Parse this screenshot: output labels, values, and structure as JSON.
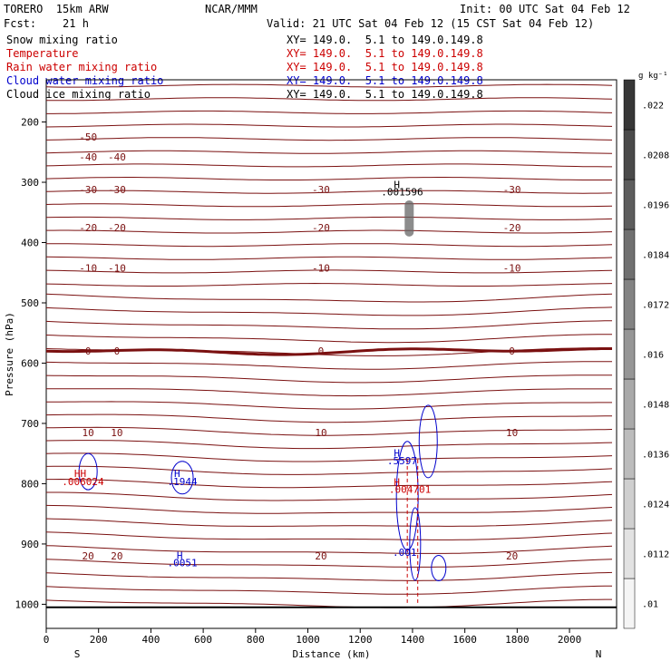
{
  "header": {
    "model": "TORERO  15km ARW",
    "center": "NCAR/MMM",
    "init": "Init: 00 UTC Sat 04 Feb 12",
    "fcst": "Fcst:    21 h",
    "valid": "Valid: 21 UTC Sat 04 Feb 12 (15 CST Sat 04 Feb 12)"
  },
  "fields": [
    {
      "name": "Snow mixing ratio",
      "xy": "XY= 149.0.  5.1 to 149.0.149.8",
      "color": "#000000"
    },
    {
      "name": "Temperature",
      "xy": "XY= 149.0.  5.1 to 149.0.149.8",
      "color": "#cc0000"
    },
    {
      "name": "Rain water mixing ratio",
      "xy": "XY= 149.0.  5.1 to 149.0.149.8",
      "color": "#cc0000"
    },
    {
      "name": "Cloud water mixing ratio",
      "xy": "XY= 149.0.  5.1 to 149.0.149.8",
      "color": "#0000cc"
    },
    {
      "name": "Cloud ice mixing ratio",
      "xy": "XY= 149.0.  5.1 to 149.0.149.8",
      "color": "#000000"
    }
  ],
  "chart_data": {
    "type": "cross-section contour",
    "xlabel": "Distance (km)",
    "ylabel": "Pressure (hPa)",
    "xlim": [
      0,
      2180
    ],
    "ylim": [
      1040,
      130
    ],
    "x_ticks": [
      0,
      200,
      400,
      600,
      800,
      1000,
      1200,
      1400,
      1600,
      1800,
      2000
    ],
    "y_ticks": [
      200,
      300,
      400,
      500,
      600,
      700,
      800,
      900,
      1000
    ],
    "left_end": "S",
    "right_end": "N",
    "colorbar": {
      "units": "g kg⁻¹",
      "tick_labels": [
        ".01",
        ".0112",
        ".0124",
        ".0136",
        ".0148",
        ".016",
        ".0172",
        ".0184",
        ".0196",
        ".0208",
        ".022"
      ]
    },
    "temperature_contours": [
      {
        "label": "-50",
        "pressure_hPa": 225
      },
      {
        "label": "-40",
        "pressure_hPa": 258
      },
      {
        "label": "-30",
        "pressure_hPa": 312
      },
      {
        "label": "-20",
        "pressure_hPa": 375
      },
      {
        "label": "-10",
        "pressure_hPa": 442
      },
      {
        "label": "0",
        "pressure_hPa": 580
      },
      {
        "label": "10",
        "pressure_hPa": 715
      },
      {
        "label": "20",
        "pressure_hPa": 920
      }
    ],
    "annotations": [
      {
        "text": "H",
        "x_km": 1340,
        "p_hPa": 310,
        "color": "#000000"
      },
      {
        "text": ".001596",
        "x_km": 1360,
        "p_hPa": 322,
        "color": "#000000"
      },
      {
        "text": "HH",
        "x_km": 130,
        "p_hPa": 789,
        "color": "#cc0000"
      },
      {
        "text": ".006024",
        "x_km": 140,
        "p_hPa": 802,
        "color": "#cc0000"
      },
      {
        "text": "H",
        "x_km": 500,
        "p_hPa": 789,
        "color": "#0000cc"
      },
      {
        "text": ".1944",
        "x_km": 520,
        "p_hPa": 802,
        "color": "#0000cc"
      },
      {
        "text": "H",
        "x_km": 510,
        "p_hPa": 925,
        "color": "#0000cc"
      },
      {
        "text": ".0051",
        "x_km": 520,
        "p_hPa": 937,
        "color": "#0000cc"
      },
      {
        "text": "H",
        "x_km": 1340,
        "p_hPa": 755,
        "color": "#0000cc"
      },
      {
        "text": ".5597",
        "x_km": 1360,
        "p_hPa": 768,
        "color": "#0000cc"
      },
      {
        "text": "H",
        "x_km": 1340,
        "p_hPa": 803,
        "color": "#cc0000"
      },
      {
        "text": ".004701",
        "x_km": 1390,
        "p_hPa": 815,
        "color": "#cc0000"
      },
      {
        "text": ".001",
        "x_km": 1370,
        "p_hPa": 920,
        "color": "#0000cc"
      }
    ]
  }
}
